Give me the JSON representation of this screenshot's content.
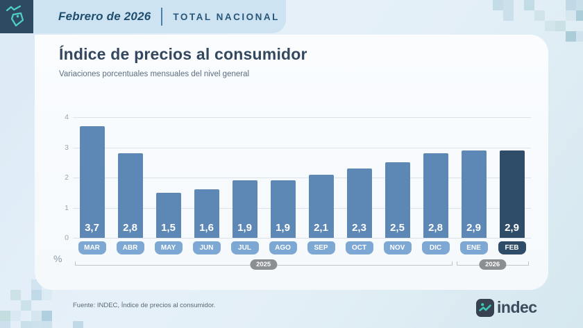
{
  "header": {
    "period": "Febrero de 2026",
    "scope": "TOTAL NACIONAL"
  },
  "title": "Índice de precios al consumidor",
  "subtitle": "Variaciones porcentuales mensuales del nivel general",
  "chart_data": {
    "type": "bar",
    "categories": [
      "MAR",
      "ABR",
      "MAY",
      "JUN",
      "JUL",
      "AGO",
      "SEP",
      "OCT",
      "NOV",
      "DIC",
      "ENE",
      "FEB"
    ],
    "values": [
      3.7,
      2.8,
      1.5,
      1.6,
      1.9,
      1.9,
      2.1,
      2.3,
      2.5,
      2.8,
      2.9,
      2.9
    ],
    "value_labels": [
      "3,7",
      "2,8",
      "1,5",
      "1,6",
      "1,9",
      "1,9",
      "2,1",
      "2,3",
      "2,5",
      "2,8",
      "2,9",
      "2,9"
    ],
    "highlight_index": 11,
    "year_groups": [
      {
        "label": "2025",
        "start": 0,
        "end": 9
      },
      {
        "label": "2026",
        "start": 10,
        "end": 11
      }
    ],
    "ylabel": "%",
    "yticks": [
      0,
      1,
      2,
      3,
      4
    ],
    "ylim": [
      0,
      4
    ],
    "grid": true,
    "colors": {
      "bar": "#5d87b4",
      "bar_highlight": "#2f4d68",
      "month_pill": "#7ea8d4",
      "month_pill_highlight": "#2f4d68",
      "year_pill": "#8b8e92",
      "accent_teal": "#4fd1c5",
      "header_navy": "#2e4a63"
    }
  },
  "footer": {
    "source": "Fuente: INDEC, Índice de precios al consumidor.",
    "brand": "indec"
  }
}
